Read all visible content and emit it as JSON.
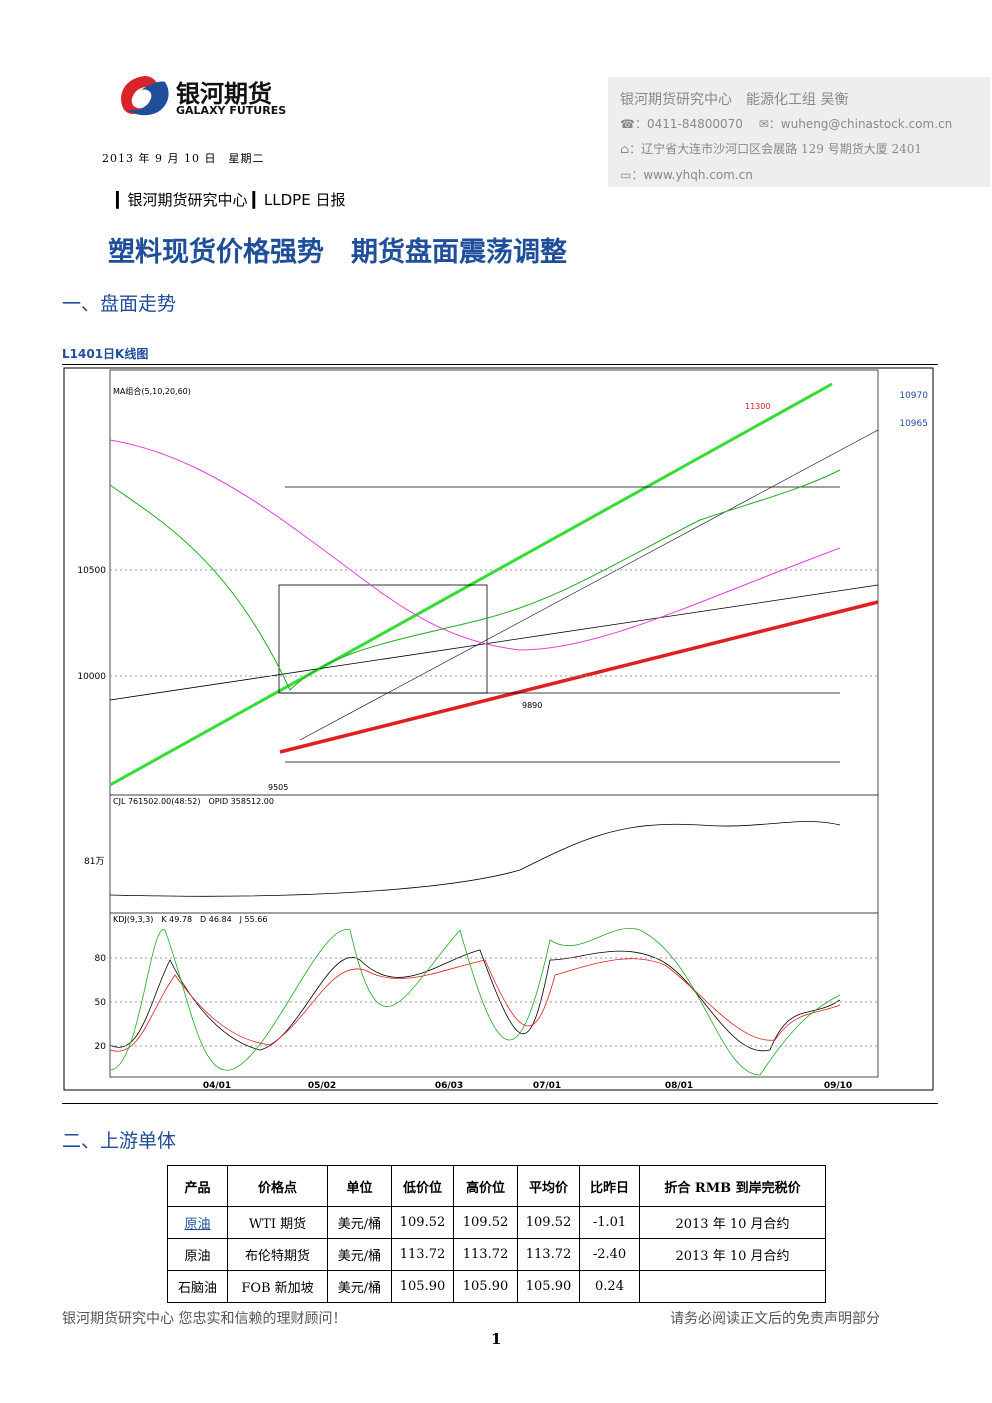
{
  "header": {
    "logo_cn": "银河期货",
    "logo_en": "GALAXY FUTURES",
    "date": "2013 年 9 月 10 日　星期二",
    "contact": {
      "org": "银河期货研究中心",
      "team": "能源化工组 吴衡",
      "phone": "0411-84800070",
      "email": "wuheng@chinastock.com.cn",
      "address": "辽宁省大连市沙河口区会展路 129 号期货大厦 2401",
      "web": "www.yhqh.com.cn"
    },
    "breadcrumb": [
      "银河期货研究中心",
      "LLDPE 日报"
    ]
  },
  "title": "塑料现货价格强势　期货盘面震荡调整",
  "section1": {
    "heading": "一、盘面走势",
    "figure_caption": "L1401日K线图",
    "chart": {
      "ma_legend": "MA组合(5,10,20,60)",
      "yticks": [
        10500,
        10000
      ],
      "kdj_ticks": [
        80,
        50,
        20
      ],
      "xticks": [
        "04/01",
        "05/02",
        "06/03",
        "07/01",
        "08/01",
        "09/10"
      ],
      "volume_label": "CJL 761502.00(48:52)　OPID 358512.00",
      "volume_unit": "81万",
      "kdj_label": "KDJ(9,3,3)　K 49.78　D 46.84　J 55.66",
      "annotations": [
        "11300",
        "9505",
        "9890"
      ],
      "right_panel": [
        "10970",
        "10965"
      ]
    }
  },
  "section2": {
    "heading": "二、上游单体",
    "table": {
      "header": [
        "产品",
        "价格点",
        "单位",
        "低价位",
        "高价位",
        "平均价",
        "比昨日",
        "折合 RMB 到岸完税价"
      ],
      "rows": [
        [
          "原油",
          "WTI 期货",
          "美元/桶",
          "109.52",
          "109.52",
          "109.52",
          "-1.01",
          "2013 年 10 月合约"
        ],
        [
          "原油",
          "布伦特期货",
          "美元/桶",
          "113.72",
          "113.72",
          "113.72",
          "-2.40",
          "2013 年 10 月合约"
        ],
        [
          "石脑油",
          "FOB 新加坡",
          "美元/桶",
          "105.90",
          "105.90",
          "105.90",
          "0.24"
        ]
      ]
    }
  },
  "footer": {
    "left": "银河期货研究中心  您忠实和信赖的理财顾问！",
    "right": "请务必阅读正文后的免责声明部分",
    "page": "1"
  }
}
